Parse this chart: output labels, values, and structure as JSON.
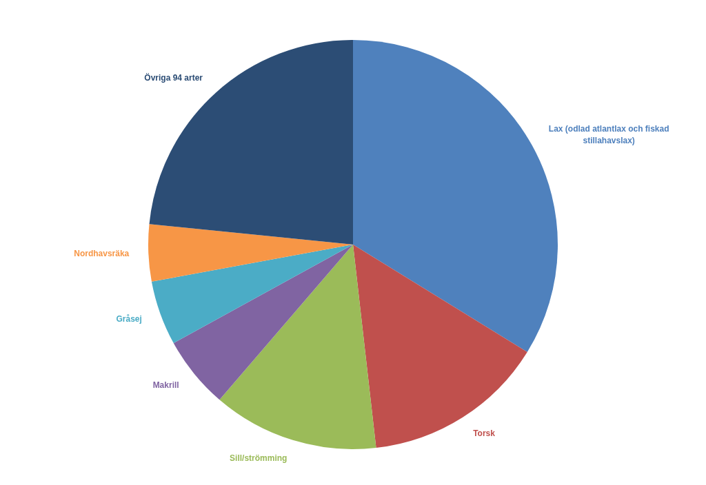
{
  "chart_data": {
    "type": "pie",
    "categories": [
      "Lax (odlad atlantlax och fiskad stillahavslax)",
      "Torsk",
      "Sill/strömming",
      "Makrill",
      "Gråsej",
      "Nordhavsräka",
      "Övriga 94 arter"
    ],
    "values": [
      33.8,
      14.4,
      13.1,
      5.7,
      5.1,
      4.5,
      23.4
    ],
    "colors": [
      "#4f81bd",
      "#c0504d",
      "#9bbb59",
      "#8064a2",
      "#4bacc6",
      "#f79646",
      "#2c4d75"
    ],
    "legend": false
  }
}
